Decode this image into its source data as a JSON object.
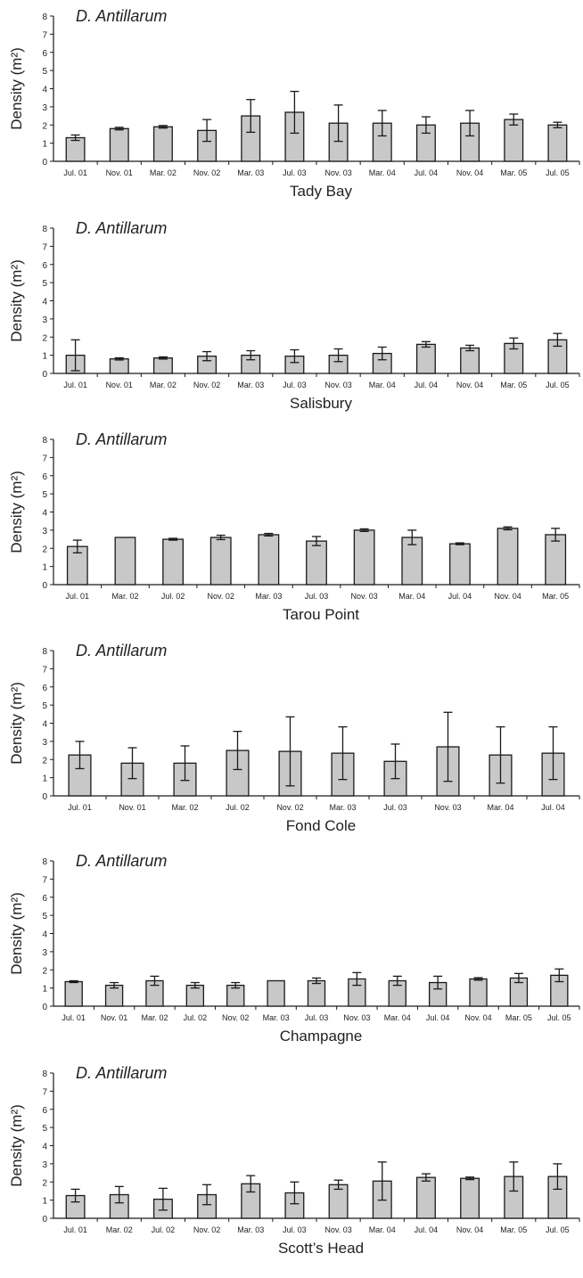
{
  "colors": {
    "bar_fill": "#c8c8c8",
    "bar_stroke": "#1a1a1a",
    "axis": "#1a1a1a"
  },
  "chart_data": [
    {
      "type": "bar",
      "title": "D. Antillarum",
      "xlabel": "Tady Bay",
      "ylabel": "Density (m²)",
      "ylim": [
        0,
        8
      ],
      "yticks": [
        0,
        1,
        2,
        3,
        4,
        5,
        6,
        7,
        8
      ],
      "grid": false,
      "categories": [
        "Jul. 01",
        "Nov. 01",
        "Mar. 02",
        "Nov. 02",
        "Mar. 03",
        "Jul. 03",
        "Nov. 03",
        "Mar. 04",
        "Jul. 04",
        "Nov. 04",
        "Mar. 05",
        "Jul. 05"
      ],
      "values": [
        1.3,
        1.8,
        1.9,
        1.7,
        2.5,
        2.7,
        2.1,
        2.1,
        2.0,
        2.1,
        2.3,
        2.0
      ],
      "errors": [
        0.15,
        0.07,
        0.07,
        0.6,
        0.9,
        1.15,
        1.0,
        0.7,
        0.45,
        0.7,
        0.3,
        0.15
      ]
    },
    {
      "type": "bar",
      "title": "D. Antillarum",
      "xlabel": "Salisbury",
      "ylabel": "Density (m²)",
      "ylim": [
        0,
        8
      ],
      "yticks": [
        0,
        1,
        2,
        3,
        4,
        5,
        6,
        7,
        8
      ],
      "grid": false,
      "categories": [
        "Jul. 01",
        "Nov. 01",
        "Mar. 02",
        "Nov. 02",
        "Mar. 03",
        "Jul. 03",
        "Nov. 03",
        "Mar. 04",
        "Jul. 04",
        "Nov. 04",
        "Mar. 05",
        "Jul. 05"
      ],
      "values": [
        1.0,
        0.8,
        0.85,
        0.95,
        1.0,
        0.95,
        1.0,
        1.1,
        1.6,
        1.4,
        1.65,
        1.85
      ],
      "errors": [
        0.85,
        0.06,
        0.06,
        0.25,
        0.25,
        0.35,
        0.35,
        0.35,
        0.15,
        0.15,
        0.3,
        0.35
      ]
    },
    {
      "type": "bar",
      "title": "D. Antillarum",
      "xlabel": "Tarou Point",
      "ylabel": "Density (m²)",
      "ylim": [
        0,
        8
      ],
      "yticks": [
        0,
        1,
        2,
        3,
        4,
        5,
        6,
        7,
        8
      ],
      "grid": false,
      "categories": [
        "Jul. 01",
        "Mar. 02",
        "Jul. 02",
        "Nov. 02",
        "Mar. 03",
        "Jul. 03",
        "Nov. 03",
        "Mar. 04",
        "Jul. 04",
        "Nov. 04",
        "Mar. 05"
      ],
      "values": [
        2.1,
        2.6,
        2.5,
        2.6,
        2.75,
        2.4,
        3.0,
        2.6,
        2.25,
        3.1,
        2.75
      ],
      "errors": [
        0.35,
        0,
        0.05,
        0.12,
        0.07,
        0.25,
        0.07,
        0.4,
        0.05,
        0.08,
        0.35
      ]
    },
    {
      "type": "bar",
      "title": "D. Antillarum",
      "xlabel": "Fond Cole",
      "ylabel": "Density (m²)",
      "ylim": [
        0,
        8
      ],
      "yticks": [
        0,
        1,
        2,
        3,
        4,
        5,
        6,
        7,
        8
      ],
      "grid": false,
      "categories": [
        "Jul. 01",
        "Nov. 01",
        "Mar. 02",
        "Jul. 02",
        "Nov. 02",
        "Mar. 03",
        "Jul. 03",
        "Nov. 03",
        "Mar. 04",
        "Jul. 04"
      ],
      "values": [
        2.25,
        1.8,
        1.8,
        2.5,
        2.45,
        2.35,
        1.9,
        2.7,
        2.25,
        2.35
      ],
      "errors": [
        0.75,
        0.85,
        0.95,
        1.05,
        1.9,
        1.45,
        0.95,
        1.9,
        1.55,
        1.45
      ]
    },
    {
      "type": "bar",
      "title": "D. Antillarum",
      "xlabel": "Champagne",
      "ylabel": "Density (m²)",
      "ylim": [
        0,
        8
      ],
      "yticks": [
        0,
        1,
        2,
        3,
        4,
        5,
        6,
        7,
        8
      ],
      "grid": false,
      "categories": [
        "Jul. 01",
        "Nov. 01",
        "Mar. 02",
        "Jul. 02",
        "Nov. 02",
        "Mar. 03",
        "Jul. 03",
        "Nov. 03",
        "Mar. 04",
        "Jul. 04",
        "Nov. 04",
        "Mar. 05",
        "Jul. 05"
      ],
      "values": [
        1.35,
        1.15,
        1.4,
        1.15,
        1.15,
        1.4,
        1.4,
        1.5,
        1.4,
        1.3,
        1.5,
        1.55,
        1.7
      ],
      "errors": [
        0.05,
        0.15,
        0.25,
        0.15,
        0.15,
        0,
        0.15,
        0.35,
        0.25,
        0.35,
        0.07,
        0.25,
        0.35
      ]
    },
    {
      "type": "bar",
      "title": "D. Antillarum",
      "xlabel": "Scott’s Head",
      "ylabel": "Density (m²)",
      "ylim": [
        0,
        8
      ],
      "yticks": [
        0,
        1,
        2,
        3,
        4,
        5,
        6,
        7,
        8
      ],
      "grid": false,
      "categories": [
        "Jul. 01",
        "Mar. 02",
        "Jul. 02",
        "Nov. 02",
        "Mar. 03",
        "Jul. 03",
        "Nov. 03",
        "Mar. 04",
        "Jul. 04",
        "Nov. 04",
        "Mar. 05",
        "Jul. 05"
      ],
      "values": [
        1.25,
        1.3,
        1.05,
        1.3,
        1.9,
        1.4,
        1.85,
        2.05,
        2.25,
        2.2,
        2.3,
        2.3
      ],
      "errors": [
        0.35,
        0.45,
        0.6,
        0.55,
        0.45,
        0.6,
        0.25,
        1.05,
        0.2,
        0.07,
        0.8,
        0.7
      ]
    }
  ]
}
